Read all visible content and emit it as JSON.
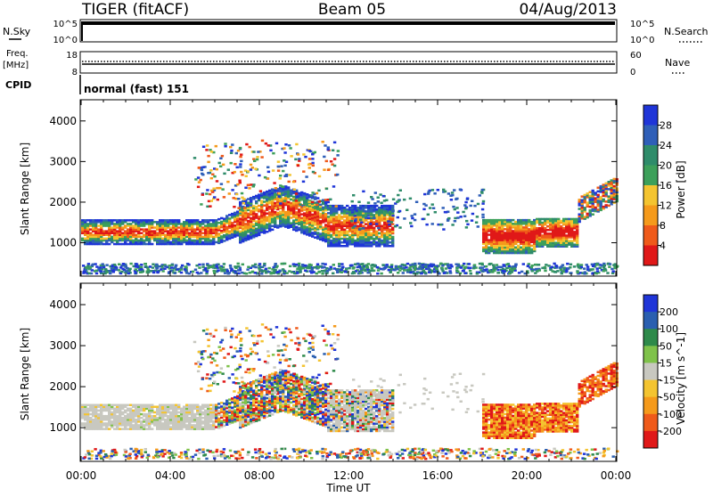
{
  "header": {
    "station": "TIGER (fitACF)",
    "beam": "Beam 05",
    "date": "04/Aug/2013"
  },
  "panels": {
    "nsky": {
      "label": "N.Sky",
      "right_label": "N.Search",
      "ticks_left": [
        "10^5",
        "10^0"
      ],
      "ticks_right": [
        "10^5",
        "10^0"
      ]
    },
    "freq": {
      "label_top": "Freq.",
      "label_unit": "[MHz]",
      "ticks_left": [
        "18",
        "8"
      ],
      "ticks_right": [
        "60",
        "0"
      ],
      "right_label": "Nave"
    },
    "cpid": {
      "label": "CPID",
      "text": "normal (fast) 151"
    }
  },
  "colors": {
    "power": [
      "#1f35d8",
      "#2f5fb8",
      "#2f8c6a",
      "#3da05a",
      "#f4c430",
      "#f59a1b",
      "#ef5a1a",
      "#e01818"
    ],
    "velocity": [
      "#1f35d8",
      "#2a5fb0",
      "#2e8a4a",
      "#7fc24a",
      "#c8c8c0",
      "#f4c430",
      "#f59a1b",
      "#ef5a1a",
      "#e01818"
    ],
    "velocity_ground": "#c8c8c0"
  },
  "chart_data": [
    {
      "type": "heatmap",
      "title": "",
      "xlabel": "",
      "ylabel": "Slant Range [km]",
      "colorbar_label": "Power [dB]",
      "colorbar_ticks": [
        "28",
        "24",
        "20",
        "16",
        "12",
        "8",
        "4"
      ],
      "x_ticks": [],
      "y_ticks": [
        "4000",
        "3000",
        "2000",
        "1000"
      ],
      "ylim": [
        200,
        4500
      ],
      "xlim": [
        0,
        24
      ]
    },
    {
      "type": "heatmap",
      "title": "",
      "xlabel": "Time UT",
      "ylabel": "Slant Range [km]",
      "colorbar_label": "Velocity [m s^-1]",
      "colorbar_ticks": [
        "200",
        "100",
        "50",
        "15",
        "-15",
        "-50",
        "-100",
        "-200"
      ],
      "x_ticks": [
        "00:00",
        "04:00",
        "08:00",
        "12:00",
        "16:00",
        "20:00",
        "00:00"
      ],
      "y_ticks": [
        "4000",
        "3000",
        "2000",
        "1000"
      ],
      "ylim": [
        200,
        4500
      ],
      "xlim": [
        0,
        24
      ]
    }
  ]
}
